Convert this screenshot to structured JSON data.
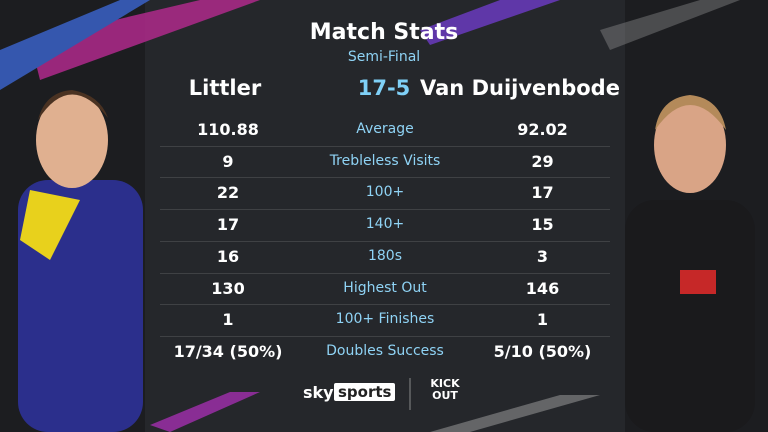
{
  "header": {
    "title": "Match Stats",
    "subtitle": "Semi-Final"
  },
  "players": {
    "left": "Littler",
    "score": "17-5",
    "right": "Van Duijvenbode"
  },
  "table": {
    "rows": [
      [
        "110.88",
        "Average",
        "92.02"
      ],
      [
        "9",
        "Trebleless Visits",
        "29"
      ],
      [
        "22",
        "100+",
        "17"
      ],
      [
        "17",
        "140+",
        "15"
      ],
      [
        "16",
        "180s",
        "3"
      ],
      [
        "130",
        "Highest Out",
        "146"
      ],
      [
        "1",
        "100+ Finishes",
        "1"
      ],
      [
        "17/34 (50%)",
        "Doubles Success",
        "5/10 (50%)"
      ]
    ]
  },
  "footer": {
    "brand": [
      "sky",
      "sports"
    ],
    "partner": [
      "KICK",
      "OUT"
    ]
  }
}
